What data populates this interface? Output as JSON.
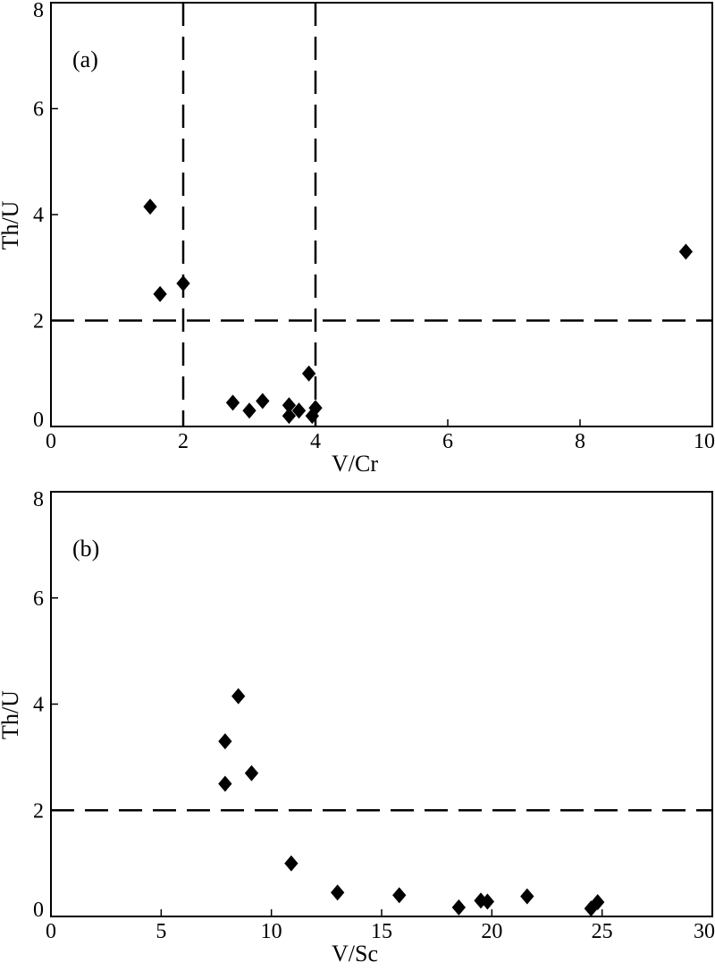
{
  "chart_data": [
    {
      "type": "scatter",
      "panel_label": "(a)",
      "xlabel": "V/Cr",
      "ylabel": "Th/U",
      "xlim": [
        0,
        10
      ],
      "ylim": [
        0,
        8
      ],
      "xticks": [
        0,
        2,
        4,
        6,
        8,
        10
      ],
      "yticks": [
        0,
        2,
        4,
        6,
        8
      ],
      "marker": "diamond",
      "marker_color": "#000000",
      "points": [
        {
          "x": 1.5,
          "y": 4.15
        },
        {
          "x": 1.65,
          "y": 2.5
        },
        {
          "x": 2.0,
          "y": 2.7
        },
        {
          "x": 2.75,
          "y": 0.45
        },
        {
          "x": 3.0,
          "y": 0.3
        },
        {
          "x": 3.2,
          "y": 0.48
        },
        {
          "x": 3.6,
          "y": 0.4
        },
        {
          "x": 3.6,
          "y": 0.2
        },
        {
          "x": 3.75,
          "y": 0.3
        },
        {
          "x": 3.9,
          "y": 1.0
        },
        {
          "x": 3.95,
          "y": 0.2
        },
        {
          "x": 4.0,
          "y": 0.35
        },
        {
          "x": 9.6,
          "y": 3.3
        }
      ],
      "reference_lines": [
        {
          "orientation": "vertical",
          "value": 2
        },
        {
          "orientation": "vertical",
          "value": 4
        },
        {
          "orientation": "horizontal",
          "value": 2
        }
      ]
    },
    {
      "type": "scatter",
      "panel_label": "(b)",
      "xlabel": "V/Sc",
      "ylabel": "Th/U",
      "xlim": [
        0,
        30
      ],
      "ylim": [
        0,
        8
      ],
      "xticks": [
        0,
        5,
        10,
        15,
        20,
        25,
        30
      ],
      "yticks": [
        0,
        2,
        4,
        6,
        8
      ],
      "marker": "diamond",
      "marker_color": "#000000",
      "points": [
        {
          "x": 7.9,
          "y": 3.3
        },
        {
          "x": 7.9,
          "y": 2.5
        },
        {
          "x": 8.5,
          "y": 4.15
        },
        {
          "x": 9.1,
          "y": 2.7
        },
        {
          "x": 10.9,
          "y": 1.0
        },
        {
          "x": 13.0,
          "y": 0.45
        },
        {
          "x": 15.8,
          "y": 0.4
        },
        {
          "x": 18.5,
          "y": 0.17
        },
        {
          "x": 19.5,
          "y": 0.3
        },
        {
          "x": 19.8,
          "y": 0.28
        },
        {
          "x": 21.6,
          "y": 0.38
        },
        {
          "x": 24.5,
          "y": 0.15
        },
        {
          "x": 24.8,
          "y": 0.27
        }
      ],
      "reference_lines": [
        {
          "orientation": "horizontal",
          "value": 2
        }
      ]
    }
  ]
}
